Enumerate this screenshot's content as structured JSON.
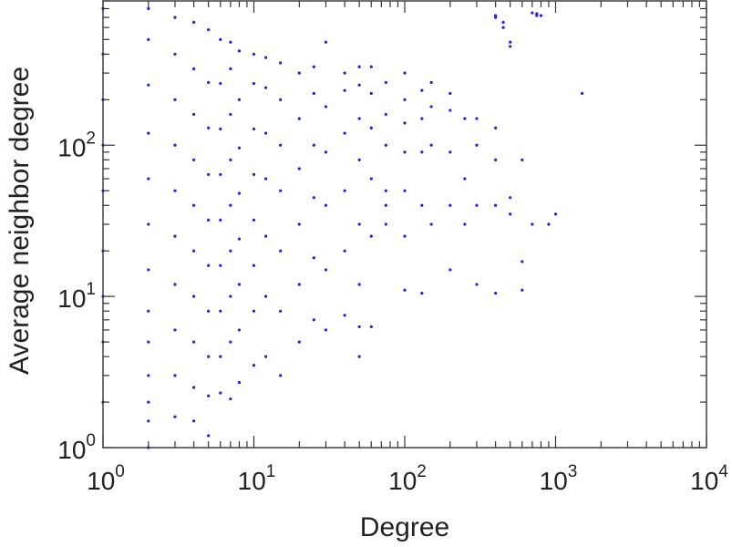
{
  "chart_data": {
    "type": "scatter",
    "title": "",
    "xlabel": "Degree",
    "ylabel": "Average neighbor degree",
    "xscale": "log",
    "yscale": "log",
    "xlim": [
      1,
      10000
    ],
    "ylim": [
      1,
      900
    ],
    "x_ticks": [
      {
        "base": "10",
        "exp": "0",
        "value": 1
      },
      {
        "base": "10",
        "exp": "1",
        "value": 10
      },
      {
        "base": "10",
        "exp": "2",
        "value": 100
      },
      {
        "base": "10",
        "exp": "3",
        "value": 1000
      },
      {
        "base": "10",
        "exp": "4",
        "value": 10000
      }
    ],
    "y_ticks": [
      {
        "base": "10",
        "exp": "0",
        "value": 1
      },
      {
        "base": "10",
        "exp": "1",
        "value": 10
      },
      {
        "base": "10",
        "exp": "2",
        "value": 100
      }
    ],
    "grid": false,
    "legend": "none",
    "marker_color": "#1f1fe6",
    "series": [
      {
        "points": [
          [
            1,
            2
          ],
          [
            1,
            5
          ],
          [
            1,
            10
          ],
          [
            1,
            20
          ],
          [
            1,
            50
          ],
          [
            1,
            100
          ],
          [
            1,
            200
          ],
          [
            1,
            400
          ],
          [
            1,
            800
          ],
          [
            2,
            1
          ],
          [
            2,
            1.5
          ],
          [
            2,
            2
          ],
          [
            2,
            3
          ],
          [
            2,
            5
          ],
          [
            2,
            8
          ],
          [
            2,
            15
          ],
          [
            2,
            30
          ],
          [
            2,
            60
          ],
          [
            2,
            120
          ],
          [
            2,
            250
          ],
          [
            2,
            500
          ],
          [
            2,
            800
          ],
          [
            3,
            1.6
          ],
          [
            3,
            3
          ],
          [
            3,
            6
          ],
          [
            3,
            12
          ],
          [
            3,
            25
          ],
          [
            3,
            50
          ],
          [
            3,
            100
          ],
          [
            3,
            200
          ],
          [
            3,
            400
          ],
          [
            3,
            700
          ],
          [
            4,
            1.5
          ],
          [
            4,
            2.5
          ],
          [
            4,
            5
          ],
          [
            4,
            10
          ],
          [
            4,
            20
          ],
          [
            4,
            40
          ],
          [
            4,
            80
          ],
          [
            4,
            160
          ],
          [
            4,
            320
          ],
          [
            4,
            650
          ],
          [
            5,
            1.2
          ],
          [
            5,
            2.2
          ],
          [
            5,
            4
          ],
          [
            5,
            8
          ],
          [
            5,
            16
          ],
          [
            5,
            32
          ],
          [
            5,
            64
          ],
          [
            5,
            130
          ],
          [
            5,
            260
          ],
          [
            5,
            580
          ],
          [
            6,
            2.3
          ],
          [
            6,
            4
          ],
          [
            6,
            8
          ],
          [
            6,
            16
          ],
          [
            6,
            32
          ],
          [
            6,
            64
          ],
          [
            6,
            128
          ],
          [
            6,
            256
          ],
          [
            6,
            500
          ],
          [
            7,
            2.1
          ],
          [
            7,
            5
          ],
          [
            7,
            10
          ],
          [
            7,
            20
          ],
          [
            7,
            40
          ],
          [
            7,
            80
          ],
          [
            7,
            160
          ],
          [
            7,
            320
          ],
          [
            7,
            480
          ],
          [
            8,
            2.7
          ],
          [
            8,
            6
          ],
          [
            8,
            12
          ],
          [
            8,
            24
          ],
          [
            8,
            48
          ],
          [
            8,
            96
          ],
          [
            8,
            200
          ],
          [
            8,
            420
          ],
          [
            10,
            3.5
          ],
          [
            10,
            8
          ],
          [
            10,
            16
          ],
          [
            10,
            32
          ],
          [
            10,
            64
          ],
          [
            10,
            128
          ],
          [
            10,
            256
          ],
          [
            10,
            400
          ],
          [
            12,
            4
          ],
          [
            12,
            10
          ],
          [
            12,
            25
          ],
          [
            12,
            60
          ],
          [
            12,
            120
          ],
          [
            12,
            240
          ],
          [
            12,
            380
          ],
          [
            15,
            3
          ],
          [
            15,
            8
          ],
          [
            15,
            20
          ],
          [
            15,
            50
          ],
          [
            15,
            100
          ],
          [
            15,
            200
          ],
          [
            15,
            350
          ],
          [
            20,
            5
          ],
          [
            20,
            12
          ],
          [
            20,
            30
          ],
          [
            20,
            70
          ],
          [
            20,
            150
          ],
          [
            20,
            300
          ],
          [
            25,
            7
          ],
          [
            25,
            18
          ],
          [
            25,
            45
          ],
          [
            25,
            100
          ],
          [
            25,
            220
          ],
          [
            25,
            330
          ],
          [
            30,
            6
          ],
          [
            30,
            15
          ],
          [
            30,
            40
          ],
          [
            30,
            90
          ],
          [
            30,
            180
          ],
          [
            30,
            480
          ],
          [
            40,
            7.5
          ],
          [
            40,
            20
          ],
          [
            40,
            50
          ],
          [
            40,
            120
          ],
          [
            40,
            230
          ],
          [
            40,
            300
          ],
          [
            50,
            4
          ],
          [
            50,
            6.3
          ],
          [
            50,
            12
          ],
          [
            50,
            30
          ],
          [
            50,
            80
          ],
          [
            50,
            150
          ],
          [
            50,
            250
          ],
          [
            50,
            330
          ],
          [
            60,
            6.3
          ],
          [
            60,
            25
          ],
          [
            60,
            60
          ],
          [
            60,
            130
          ],
          [
            60,
            220
          ],
          [
            60,
            330
          ],
          [
            75,
            30
          ],
          [
            75,
            40
          ],
          [
            75,
            50
          ],
          [
            75,
            100
          ],
          [
            75,
            160
          ],
          [
            75,
            260
          ],
          [
            100,
            11
          ],
          [
            100,
            25
          ],
          [
            100,
            50
          ],
          [
            100,
            90
          ],
          [
            100,
            140
          ],
          [
            100,
            200
          ],
          [
            100,
            300
          ],
          [
            130,
            10.5
          ],
          [
            130,
            40
          ],
          [
            130,
            90
          ],
          [
            130,
            150
          ],
          [
            130,
            230
          ],
          [
            150,
            30
          ],
          [
            150,
            100
          ],
          [
            150,
            180
          ],
          [
            150,
            260
          ],
          [
            200,
            15
          ],
          [
            200,
            40
          ],
          [
            200,
            90
          ],
          [
            200,
            170
          ],
          [
            200,
            220
          ],
          [
            250,
            30
          ],
          [
            250,
            60
          ],
          [
            250,
            150
          ],
          [
            300,
            12
          ],
          [
            300,
            40
          ],
          [
            300,
            100
          ],
          [
            300,
            150
          ],
          [
            400,
            10.5
          ],
          [
            400,
            40
          ],
          [
            400,
            80
          ],
          [
            400,
            130
          ],
          [
            400,
            700
          ],
          [
            400,
            720
          ],
          [
            450,
            650
          ],
          [
            450,
            600
          ],
          [
            500,
            35
          ],
          [
            500,
            45
          ],
          [
            500,
            450
          ],
          [
            500,
            480
          ],
          [
            600,
            11
          ],
          [
            600,
            17
          ],
          [
            600,
            80
          ],
          [
            700,
            30
          ],
          [
            700,
            750
          ],
          [
            750,
            720
          ],
          [
            750,
            740
          ],
          [
            800,
            720
          ],
          [
            900,
            30
          ],
          [
            1000,
            35
          ],
          [
            1500,
            220
          ]
        ]
      }
    ]
  }
}
